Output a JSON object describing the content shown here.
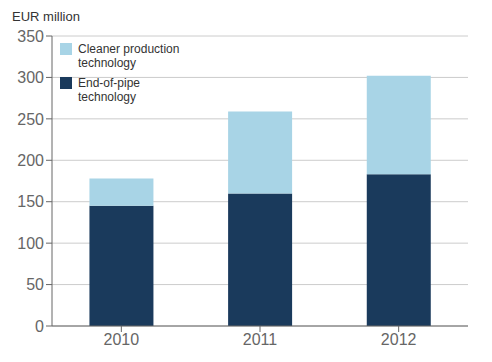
{
  "chart_data": {
    "type": "bar",
    "stacked": true,
    "categories": [
      "2010",
      "2011",
      "2012"
    ],
    "series": [
      {
        "name": "End-of-pipe\ntechnology",
        "color": "#1a3a5c",
        "values": [
          145,
          160,
          183
        ]
      },
      {
        "name": "Cleaner production\ntechnology",
        "color": "#a8d4e6",
        "values": [
          33,
          99,
          119
        ]
      }
    ],
    "ylabel": "EUR million",
    "ylim": [
      0,
      350
    ],
    "yticks": [
      0,
      50,
      100,
      150,
      200,
      250,
      300,
      350
    ],
    "grid": true,
    "legend": "upper left"
  }
}
